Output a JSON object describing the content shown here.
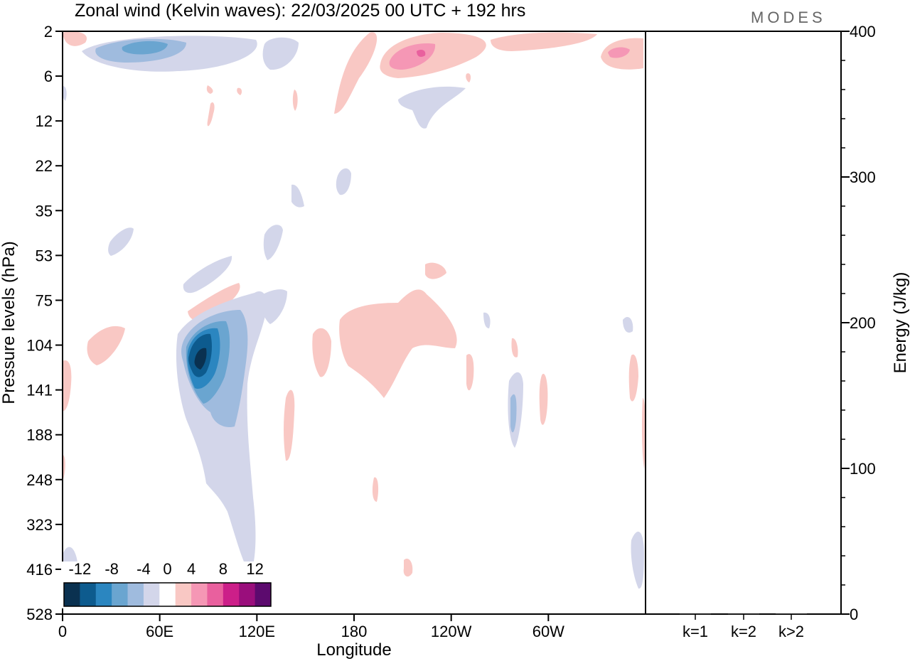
{
  "chart_data": [
    {
      "type": "heatmap",
      "title": "Zonal wind (Kelvin waves):  22/03/2025  00 UTC  + 192 hrs",
      "xlabel": "Longitude",
      "ylabel": "Pressure levels (hPa)",
      "x_ticks": [
        "0",
        "60E",
        "120E",
        "180",
        "120W",
        "60W"
      ],
      "y_ticks": [
        "2",
        "6",
        "12",
        "22",
        "35",
        "53",
        "75",
        "104",
        "141",
        "188",
        "248",
        "323",
        "416",
        "528"
      ],
      "colorbar": {
        "ticks": [
          "-12",
          "-8",
          "-4",
          "0",
          "4",
          "8",
          "12"
        ],
        "levels": [
          -14,
          -12,
          -10,
          -8,
          -6,
          -4,
          -2,
          2,
          4,
          6,
          8,
          10,
          12,
          14
        ],
        "colors": [
          "#0a3150",
          "#0d5b8e",
          "#2b86c0",
          "#6aa5d0",
          "#9fbbde",
          "#d3d6ea",
          "#ffffff",
          "#f9c8c4",
          "#f597b5",
          "#e9609e",
          "#cc1f89",
          "#9a0e7c",
          "#5c0a6e"
        ]
      },
      "features": [
        {
          "sign": "negative",
          "peak": -13,
          "longitude": "~83E",
          "pressure_hPa": 120
        },
        {
          "sign": "negative",
          "peak": -8,
          "longitude": "~40E",
          "pressure_hPa": 3
        },
        {
          "sign": "positive",
          "peak": 8,
          "longitude": "~150W",
          "pressure_hPa": 3
        },
        {
          "sign": "positive",
          "peak": 6,
          "longitude": "~30W",
          "pressure_hPa": 3
        },
        {
          "sign": "positive",
          "peak": 4,
          "longitude": "~170W",
          "pressure_hPa": 110
        },
        {
          "sign": "negative",
          "peak": -6,
          "longitude": "~55W",
          "pressure_hPa": 160
        }
      ]
    },
    {
      "type": "bar",
      "ylabel": "Energy (J/kg)",
      "categories": [
        "k=1",
        "k=2",
        "k>2"
      ],
      "values": [
        0.3,
        0.3,
        0.5
      ],
      "ylim": [
        0,
        400
      ],
      "y_ticks": [
        "0",
        "100",
        "200",
        "300",
        "400"
      ]
    }
  ],
  "brand": "MODES"
}
